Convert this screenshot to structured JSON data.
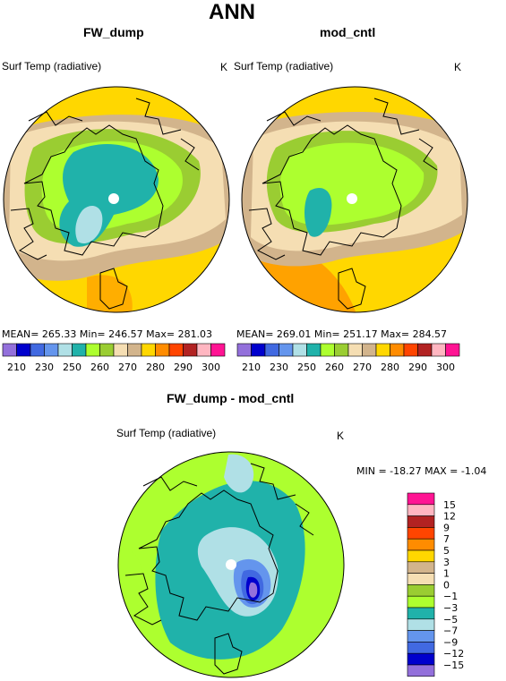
{
  "figure": {
    "title": "ANN",
    "left": {
      "case": "FW_dump",
      "variable": "Surf Temp (radiative)",
      "unit": "K",
      "stats": "MEAN= 265.33   Min= 246.57   Max= 281.03"
    },
    "right": {
      "case": "mod_cntl",
      "variable": "Surf Temp (radiative)",
      "unit": "K",
      "stats": "MEAN= 269.01   Min= 251.17   Max= 284.57"
    },
    "diff": {
      "title": "FW_dump - mod_cntl",
      "variable": "Surf Temp (radiative)",
      "unit": "K",
      "minmax": "MIN = -18.27  MAX =  -1.04"
    }
  },
  "colors": {
    "abs_palette": [
      "#9370db",
      "#0000cd",
      "#4169e1",
      "#6495ed",
      "#b0e0e6",
      "#20b2aa",
      "#adff2f",
      "#9acd32",
      "#f5deb3",
      "#d2b48c",
      "#ffd700",
      "#ff8c00",
      "#ff4500",
      "#b22222",
      "#ffb6c1",
      "#ff1493"
    ],
    "diff_palette": [
      "#9370db",
      "#0000cd",
      "#4169e1",
      "#6495ed",
      "#b0e0e6",
      "#20b2aa",
      "#adff2f",
      "#9acd32",
      "#f5deb3",
      "#d2b48c",
      "#ffd700",
      "#ff8c00",
      "#ff4500",
      "#b22222",
      "#ffb6c1",
      "#ff1493"
    ]
  },
  "chart_data": [
    {
      "type": "heatmap",
      "title": "FW_dump",
      "projection": "north polar stereographic",
      "variable": "Surf Temp (radiative)",
      "unit": "K",
      "mean": 265.33,
      "min": 246.57,
      "max": 281.03,
      "colorbar_levels": [
        210,
        220,
        230,
        240,
        250,
        255,
        260,
        265,
        270,
        275,
        280,
        285,
        290,
        295,
        300
      ],
      "colorbar_labels": [
        "210",
        "230",
        "250",
        "260",
        "270",
        "280",
        "290",
        "300"
      ]
    },
    {
      "type": "heatmap",
      "title": "mod_cntl",
      "projection": "north polar stereographic",
      "variable": "Surf Temp (radiative)",
      "unit": "K",
      "mean": 269.01,
      "min": 251.17,
      "max": 284.57,
      "colorbar_levels": [
        210,
        220,
        230,
        240,
        250,
        255,
        260,
        265,
        270,
        275,
        280,
        285,
        290,
        295,
        300
      ],
      "colorbar_labels": [
        "210",
        "230",
        "250",
        "260",
        "270",
        "280",
        "290",
        "300"
      ]
    },
    {
      "type": "heatmap",
      "title": "FW_dump - mod_cntl",
      "projection": "north polar stereographic",
      "variable": "Surf Temp (radiative)",
      "unit": "K",
      "min": -18.27,
      "max": -1.04,
      "colorbar_labels": [
        "15",
        "12",
        "9",
        "7",
        "5",
        "3",
        "1",
        "0",
        "−1",
        "−3",
        "−5",
        "−7",
        "−9",
        "−12",
        "−15"
      ]
    }
  ]
}
